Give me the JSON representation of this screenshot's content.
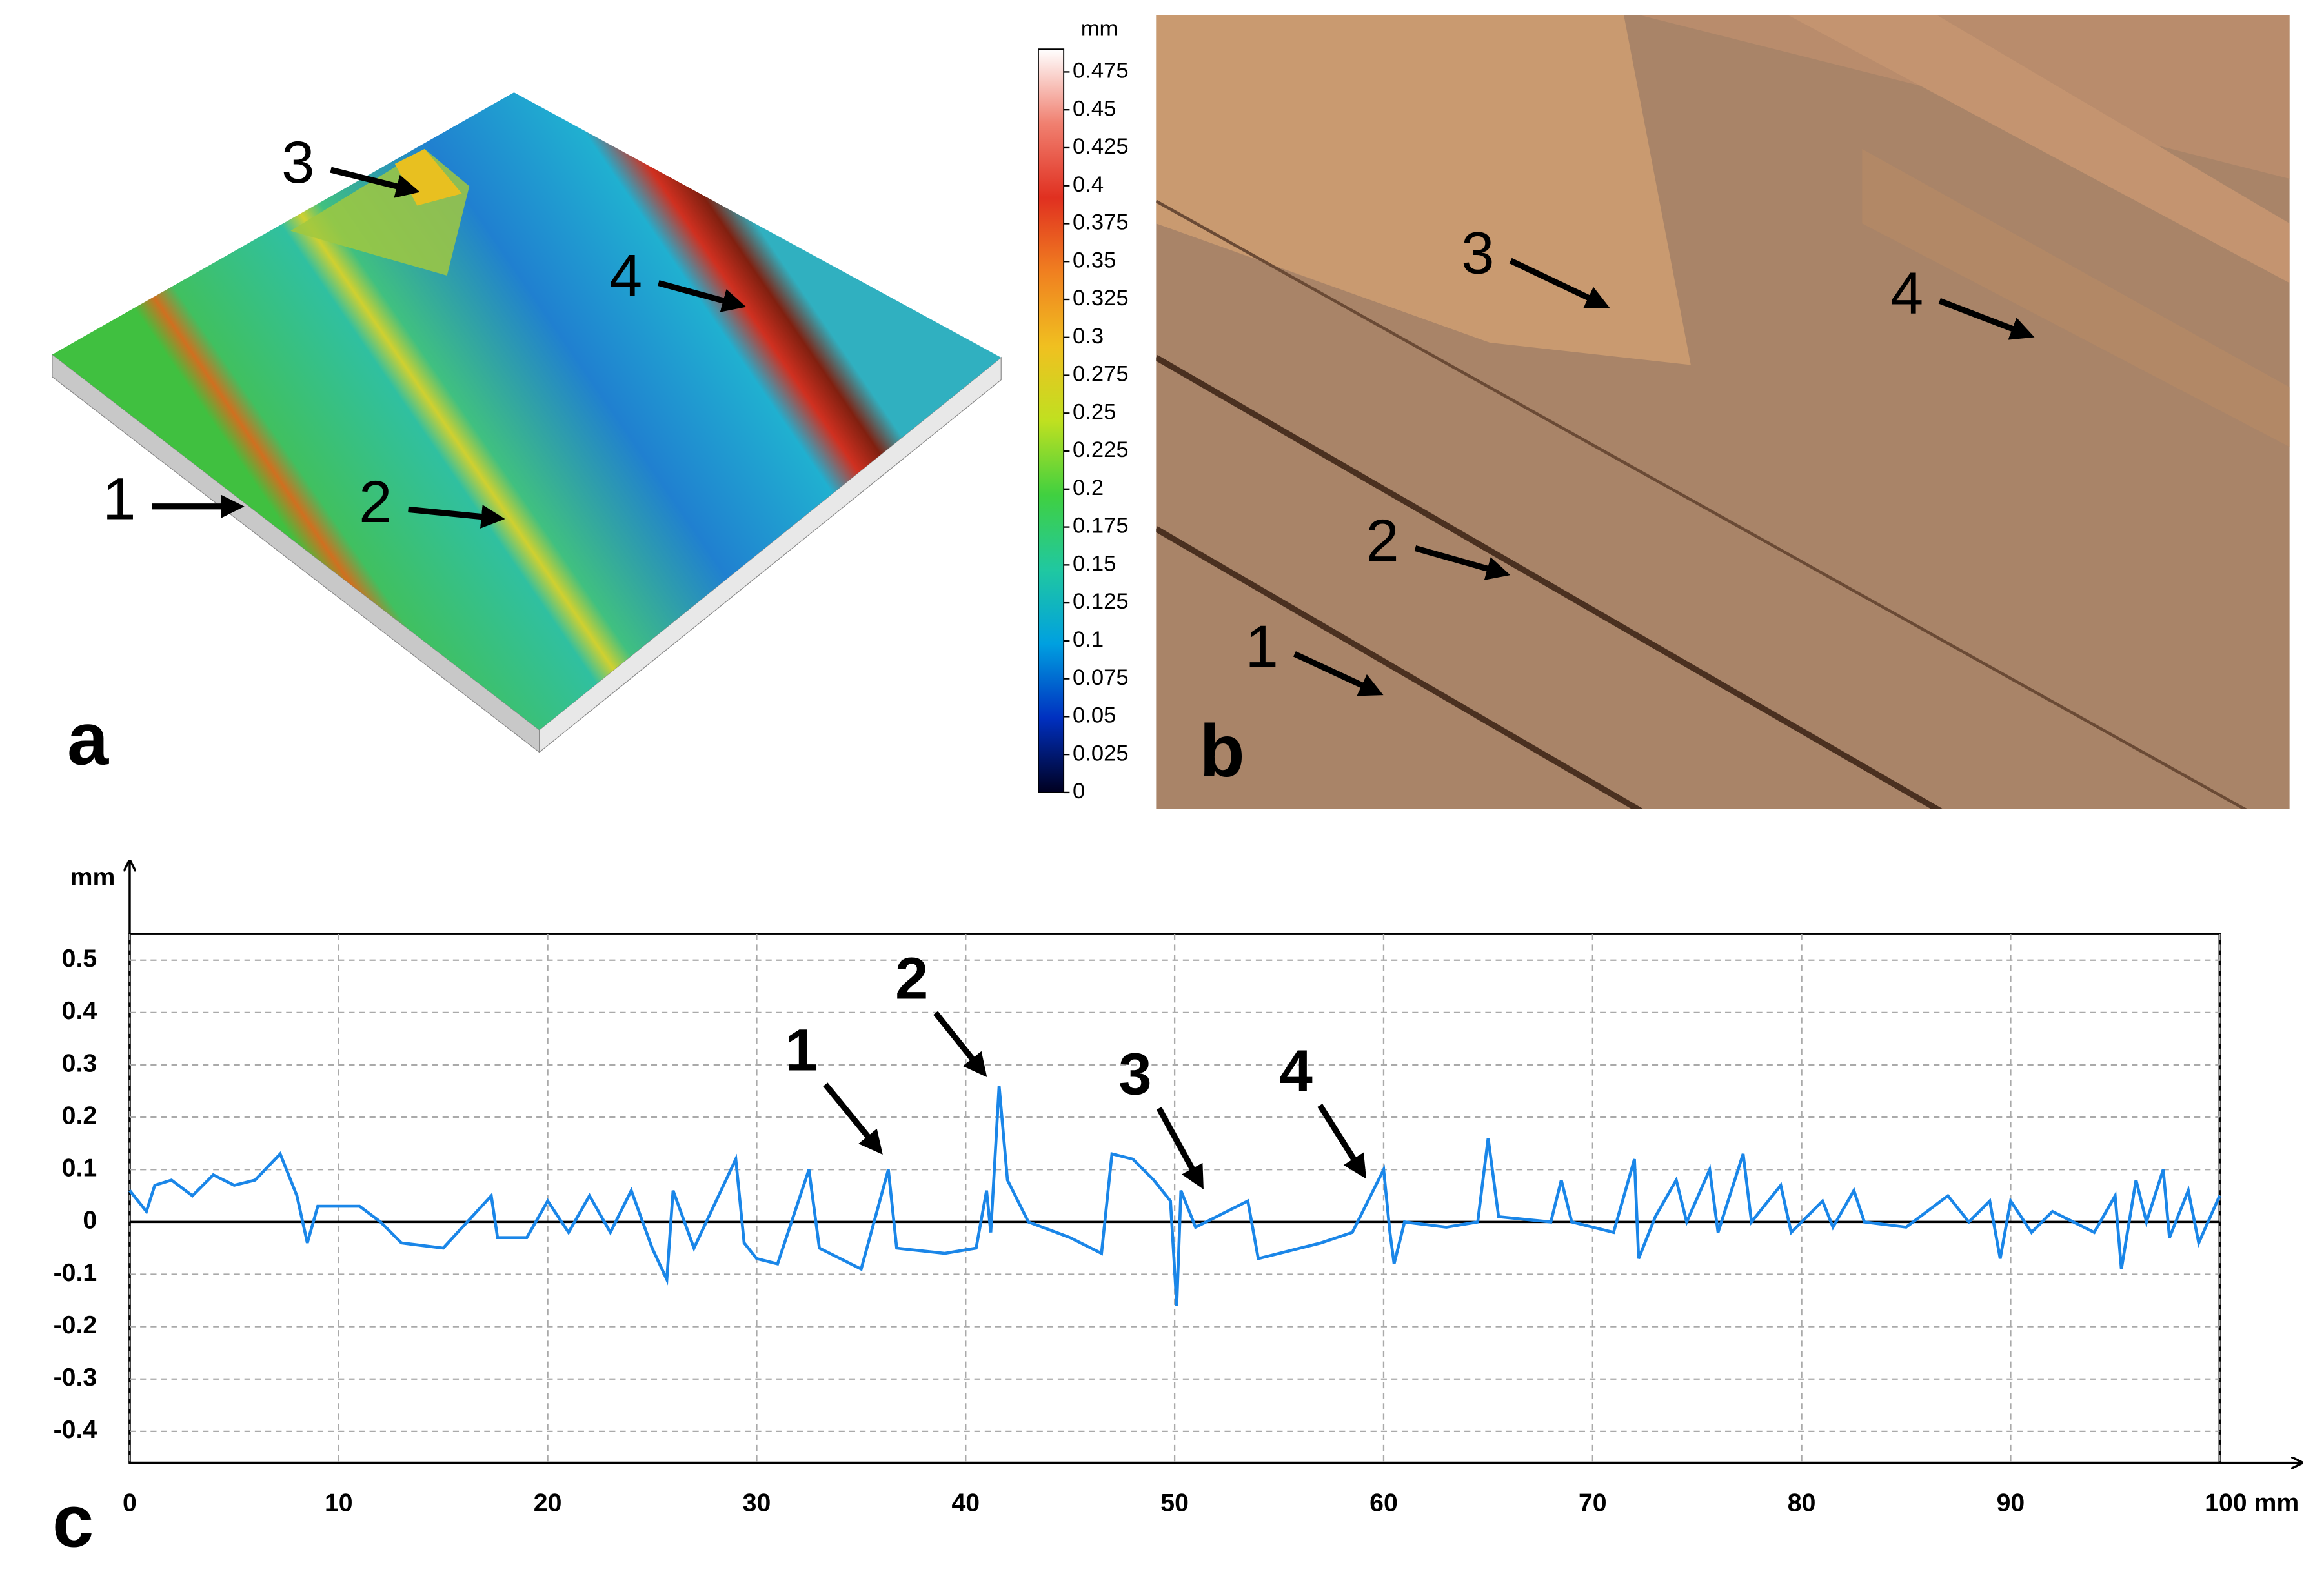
{
  "panel_a": {
    "label": "a",
    "markers": [
      "1",
      "2",
      "3",
      "4"
    ]
  },
  "panel_b": {
    "label": "b",
    "markers": [
      "1",
      "2",
      "3",
      "4"
    ]
  },
  "panel_c": {
    "label": "c"
  },
  "chart_data": [
    {
      "type": "colorbar",
      "unit": "mm",
      "ylim": [
        0,
        0.49
      ],
      "yticks": [
        0,
        0.025,
        0.05,
        0.075,
        0.1,
        0.125,
        0.15,
        0.175,
        0.2,
        0.225,
        0.25,
        0.275,
        0.3,
        0.325,
        0.35,
        0.375,
        0.4,
        0.425,
        0.45,
        0.475
      ],
      "colors": [
        "#000020",
        "#0030c0",
        "#00a0e0",
        "#20c8a0",
        "#40d040",
        "#c0e020",
        "#f0c020",
        "#f08020",
        "#e03020",
        "#f08070",
        "#ffffff"
      ]
    },
    {
      "type": "line",
      "ylabel": "mm",
      "xlim": [
        0,
        100
      ],
      "ylim": [
        -0.46,
        0.55
      ],
      "xticks": [
        0,
        10,
        20,
        30,
        40,
        50,
        60,
        70,
        80,
        90,
        {
          "value": 100,
          "label": "100 mm"
        }
      ],
      "yticks": [
        0.5,
        0.4,
        0.3,
        0.2,
        0.1,
        0,
        -0.1,
        -0.2,
        -0.3,
        -0.4
      ],
      "grid": true,
      "annotations": [
        "1",
        "2",
        "3",
        "4"
      ],
      "series": [
        {
          "color": "#1a86e8",
          "x": [
            0,
            0.8,
            1.2,
            2,
            3,
            4,
            5,
            6,
            7.2,
            8,
            8.5,
            9,
            11,
            12,
            13,
            15,
            17.3,
            17.6,
            19,
            20,
            21,
            22,
            23,
            24,
            25,
            25.7,
            26,
            27,
            29,
            29.4,
            30,
            31,
            32.5,
            33,
            35,
            36.3,
            36.7,
            39,
            40.5,
            41,
            41.2,
            41.6,
            42,
            43,
            45,
            46.5,
            47,
            48,
            49,
            49.8,
            50.1,
            50.3,
            51,
            52,
            53.5,
            54,
            55,
            57,
            58.5,
            59,
            60,
            60.3,
            60.5,
            61,
            63,
            64.5,
            65,
            65.5,
            68,
            68.5,
            69,
            71,
            72,
            72.2,
            73,
            74,
            74.5,
            75.6,
            76,
            77.2,
            77.6,
            79,
            79.5,
            81,
            81.5,
            82.5,
            83,
            85,
            87,
            88,
            89,
            89.5,
            90,
            91,
            92,
            94,
            95,
            95.3,
            96,
            96.5,
            97.3,
            97.6,
            98.5,
            99,
            100
          ],
          "values": [
            0.06,
            0.02,
            0.07,
            0.08,
            0.05,
            0.09,
            0.07,
            0.08,
            0.13,
            0.05,
            -0.04,
            0.03,
            0.03,
            0,
            -0.04,
            -0.05,
            0.05,
            -0.03,
            -0.03,
            0.04,
            -0.02,
            0.05,
            -0.02,
            0.06,
            -0.05,
            -0.11,
            0.06,
            -0.05,
            0.12,
            -0.04,
            -0.07,
            -0.08,
            0.1,
            -0.05,
            -0.09,
            0.1,
            -0.05,
            -0.06,
            -0.05,
            0.06,
            -0.02,
            0.26,
            0.08,
            0,
            -0.03,
            -0.06,
            0.13,
            0.12,
            0.08,
            0.04,
            -0.16,
            0.06,
            -0.01,
            0.01,
            0.04,
            -0.07,
            -0.06,
            -0.04,
            -0.02,
            0.02,
            0.1,
            -0.02,
            -0.08,
            0,
            -0.01,
            0,
            0.16,
            0.01,
            0,
            0.08,
            0,
            -0.02,
            0.12,
            -0.07,
            0.01,
            0.08,
            0,
            0.1,
            -0.02,
            0.13,
            0,
            0.07,
            -0.02,
            0.04,
            -0.01,
            0.06,
            0,
            -0.01,
            0.05,
            0,
            0.04,
            -0.07,
            0.04,
            -0.02,
            0.02,
            -0.02,
            0.05,
            -0.09,
            0.08,
            0,
            0.1,
            -0.03,
            0.06,
            -0.04,
            0.05
          ]
        }
      ]
    }
  ]
}
